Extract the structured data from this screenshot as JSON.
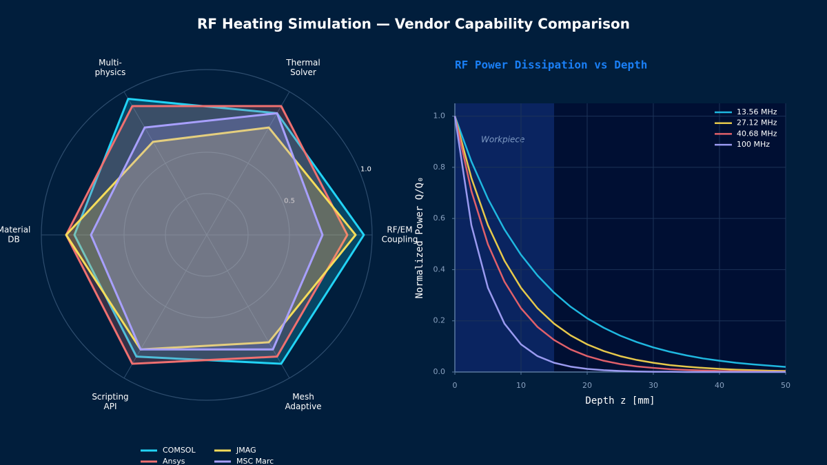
{
  "title": "RF Heating Simulation  —  Vendor Capability Comparison",
  "chart_data": [
    {
      "type": "radar",
      "categories": [
        [
          "RF/EM",
          "Coupling"
        ],
        [
          "Thermal",
          "Solver"
        ],
        [
          "Multi-",
          "physics"
        ],
        [
          "Material",
          "DB"
        ],
        [
          "Scripting",
          "API"
        ],
        [
          "Mesh",
          "Adaptive"
        ]
      ],
      "rlim": [
        0,
        1
      ],
      "rticks": [
        {
          "value": 0.5,
          "label": "0.5"
        },
        {
          "value": 1.0,
          "label": "1.0"
        }
      ],
      "series": [
        {
          "name": "COMSOL",
          "color": "#22d3f5",
          "values": [
            0.95,
            0.85,
            0.95,
            0.8,
            0.85,
            0.9
          ]
        },
        {
          "name": "Ansys",
          "color": "#f07070",
          "values": [
            0.85,
            0.9,
            0.9,
            0.85,
            0.9,
            0.85
          ]
        },
        {
          "name": "JMAG",
          "color": "#f5dc5a",
          "values": [
            0.9,
            0.75,
            0.65,
            0.85,
            0.8,
            0.75
          ]
        },
        {
          "name": "MSC Marc",
          "color": "#a8a0ff",
          "values": [
            0.7,
            0.85,
            0.75,
            0.7,
            0.8,
            0.8
          ]
        }
      ],
      "legend": "bottom"
    },
    {
      "type": "line",
      "title": "RF Power Dissipation vs Depth",
      "x_label": "Depth z [mm]",
      "y_label": "Normalized Power  Q/Q₀",
      "x": [
        0,
        2.5,
        5,
        7.5,
        10,
        12.5,
        15,
        17.5,
        20,
        22.5,
        25,
        27.5,
        30,
        32.5,
        35,
        37.5,
        40,
        42.5,
        45,
        47.5,
        50
      ],
      "series": [
        {
          "name": "13.56 MHz",
          "color": "#1fb8e0",
          "values": [
            1,
            0.823,
            0.677,
            0.557,
            0.458,
            0.377,
            0.31,
            0.255,
            0.21,
            0.173,
            0.142,
            0.117,
            0.096,
            0.079,
            0.065,
            0.053,
            0.044,
            0.036,
            0.03,
            0.025,
            0.02
          ]
        },
        {
          "name": "27.12 MHz",
          "color": "#e6c84b",
          "values": [
            1,
            0.758,
            0.574,
            0.435,
            0.329,
            0.249,
            0.189,
            0.143,
            0.108,
            0.082,
            0.062,
            0.047,
            0.036,
            0.027,
            0.021,
            0.016,
            0.012,
            0.009,
            0.007,
            0.005,
            0.004
          ]
        },
        {
          "name": "40.68 MHz",
          "color": "#e0606a",
          "values": [
            1,
            0.707,
            0.499,
            0.353,
            0.249,
            0.176,
            0.125,
            0.088,
            0.062,
            0.044,
            0.031,
            0.022,
            0.016,
            0.011,
            0.008,
            0.006,
            0.004,
            0.003,
            0.002,
            0.001,
            0.001
          ]
        },
        {
          "name": "100 MHz",
          "color": "#9a9af0",
          "values": [
            1,
            0.574,
            0.329,
            0.189,
            0.108,
            0.062,
            0.036,
            0.021,
            0.012,
            0.007,
            0.004,
            0.002,
            0.001,
            0.001,
            0,
            0,
            0,
            0,
            0,
            0,
            0
          ]
        }
      ],
      "xlim": [
        0,
        50
      ],
      "ylim": [
        0,
        1.05
      ],
      "xticks": [
        0,
        10,
        20,
        30,
        40,
        50
      ],
      "yticks": [
        {
          "value": 0,
          "label": "0.0"
        },
        {
          "value": 0.2,
          "label": "0.2"
        },
        {
          "value": 0.4,
          "label": "0.4"
        },
        {
          "value": 0.6,
          "label": "0.6"
        },
        {
          "value": 0.8,
          "label": "0.8"
        },
        {
          "value": 1.0,
          "label": "1.0"
        }
      ],
      "grid": true,
      "legend": "upper right",
      "shaded_region": {
        "xlim": [
          0,
          15
        ],
        "label": "Workpiece",
        "color": "#0a2460"
      }
    }
  ]
}
